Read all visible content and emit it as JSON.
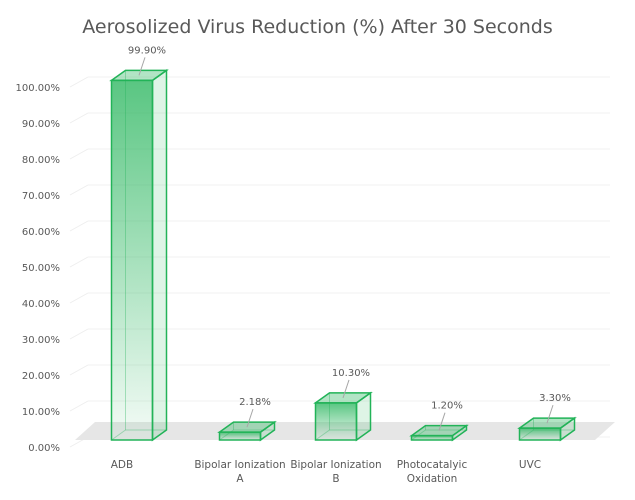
{
  "chart_data": {
    "type": "bar",
    "title": "Aerosolized Virus Reduction (%) After 30 Seconds",
    "categories": [
      [
        "ADB"
      ],
      [
        "Bipolar Ionization",
        "A"
      ],
      [
        "Bipolar Ionization",
        "B"
      ],
      [
        "Photocatalyic",
        "Oxidation"
      ],
      [
        "UVC"
      ]
    ],
    "values": [
      99.9,
      2.18,
      10.3,
      1.2,
      3.3
    ],
    "data_labels": [
      "99.90%",
      "2.18%",
      "10.30%",
      "1.20%",
      "3.30%"
    ],
    "yticks": [
      "0.00%",
      "10.00%",
      "20.00%",
      "30.00%",
      "40.00%",
      "50.00%",
      "60.00%",
      "70.00%",
      "80.00%",
      "90.00%",
      "100.00%"
    ],
    "ylim": [
      0,
      100
    ],
    "xlabel": "",
    "ylabel": "",
    "colors": {
      "bar": "#22b358",
      "tick": "#595959"
    }
  }
}
